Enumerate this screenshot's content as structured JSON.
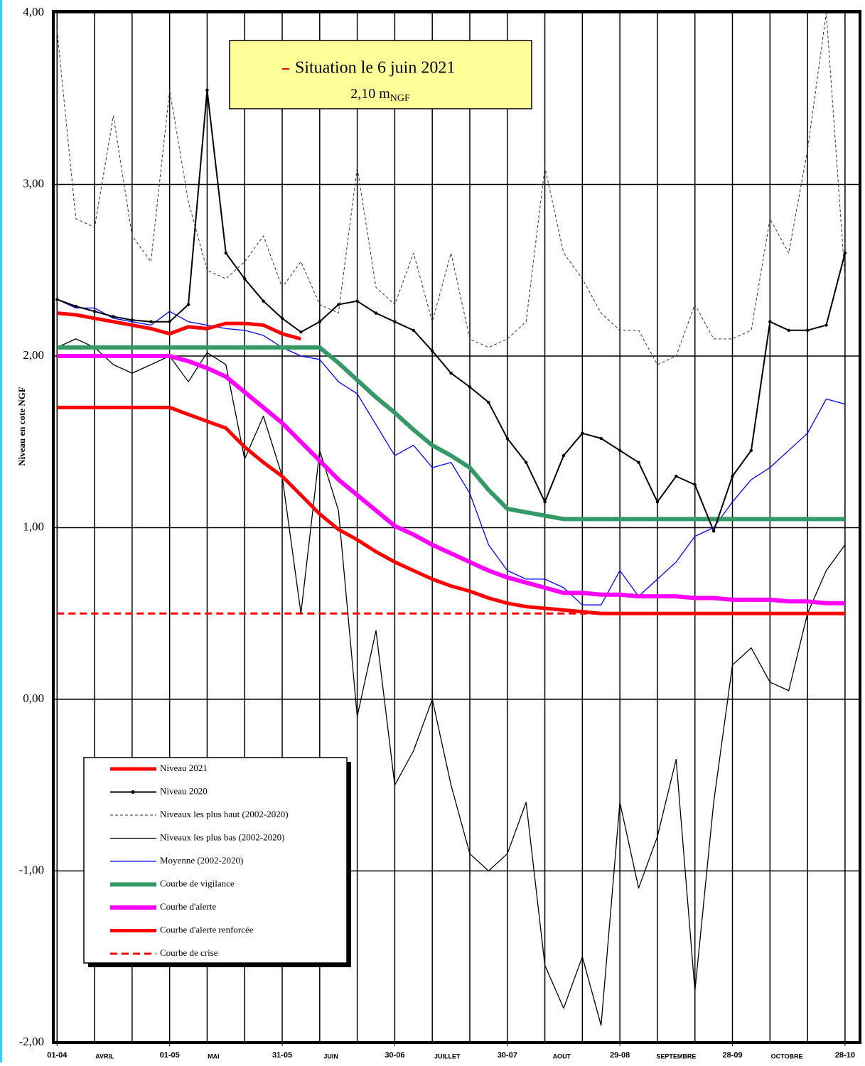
{
  "chart_data": {
    "type": "line",
    "y_label": "Niveau en cote NGF",
    "annotation": {
      "marker_color": "#ff0000",
      "text": "Situation le 6 juin 2021",
      "value": "2,10 m",
      "subscript": "NGF"
    },
    "xlim": [
      -1,
      214
    ],
    "ylim": [
      -2,
      4
    ],
    "yticks": [
      {
        "value": 4,
        "label": "4,00"
      },
      {
        "value": 3,
        "label": "3,00"
      },
      {
        "value": 2,
        "label": "2,00"
      },
      {
        "value": 1,
        "label": "1,00"
      },
      {
        "value": 0,
        "label": "0,00"
      },
      {
        "value": -1,
        "label": "-1,00"
      },
      {
        "value": -2,
        "label": "-2,00"
      }
    ],
    "xticks": [
      {
        "value": 0,
        "label": "01-04"
      },
      {
        "value": 30,
        "label": "01-05"
      },
      {
        "value": 60,
        "label": "31-05"
      },
      {
        "value": 90,
        "label": "30-06"
      },
      {
        "value": 120,
        "label": "30-07"
      },
      {
        "value": 150,
        "label": "29-08"
      },
      {
        "value": 180,
        "label": "28-09"
      },
      {
        "value": 210,
        "label": "28-10"
      }
    ],
    "month_labels": [
      {
        "value": 12.7,
        "label": "AVRIL"
      },
      {
        "value": 41.7,
        "label": "MAI"
      },
      {
        "value": 73,
        "label": "JUIN"
      },
      {
        "value": 104,
        "label": "JUILLET"
      },
      {
        "value": 134.5,
        "label": "AOUT"
      },
      {
        "value": 165,
        "label": "SEPTEMBRE"
      },
      {
        "value": 194.5,
        "label": "OCTOBRE"
      }
    ],
    "xgrid": [
      0,
      10,
      20,
      30,
      40,
      50,
      60,
      70,
      80,
      90,
      100,
      110,
      120,
      130,
      140,
      150,
      160,
      170,
      180,
      190,
      200,
      210
    ],
    "grid": true,
    "legend": "lower-left",
    "x": [
      0,
      5,
      10,
      15,
      20,
      25,
      30,
      35,
      40,
      45,
      50,
      55,
      60,
      65,
      70,
      75,
      80,
      85,
      90,
      95,
      100,
      105,
      110,
      115,
      120,
      125,
      130,
      135,
      140,
      145,
      150,
      155,
      160,
      165,
      170,
      175,
      180,
      185,
      190,
      195,
      200,
      205,
      210
    ],
    "series": [
      {
        "name": "Courbe de crise",
        "color": "#ff0000",
        "width": 3,
        "dash": "dashed",
        "values": [
          0.5,
          0.5,
          0.5,
          0.5,
          0.5,
          0.5,
          0.5,
          0.5,
          0.5,
          0.5,
          0.5,
          0.5,
          0.5,
          0.5,
          0.5,
          0.5,
          0.5,
          0.5,
          0.5,
          0.5,
          0.5,
          0.5,
          0.5,
          0.5,
          0.5,
          0.5,
          0.5,
          0.5,
          0.5,
          0.5,
          0.5,
          0.5,
          0.5,
          0.5,
          0.5,
          0.5,
          0.5,
          0.5,
          0.5,
          0.5,
          0.5,
          0.5,
          0.5
        ]
      },
      {
        "name": "Niveaux les plus haut (2002-2020)",
        "color": "#333333",
        "width": 1,
        "dash": "dotted",
        "values": [
          3.9,
          2.8,
          2.75,
          3.4,
          2.7,
          2.55,
          3.55,
          2.9,
          2.5,
          2.45,
          2.55,
          2.7,
          2.4,
          2.55,
          2.3,
          2.25,
          3.1,
          2.4,
          2.3,
          2.6,
          2.2,
          2.6,
          2.1,
          2.05,
          2.1,
          2.2,
          3.1,
          2.6,
          2.45,
          2.25,
          2.15,
          2.15,
          1.95,
          2.0,
          2.3,
          2.1,
          2.1,
          2.15,
          2.8,
          2.6,
          3.2,
          4.0,
          2.45
        ]
      },
      {
        "name": "Niveaux les plus bas (2002-2020)",
        "color": "#000000",
        "width": 1.3,
        "values": [
          2.05,
          2.1,
          2.05,
          1.95,
          1.9,
          1.95,
          2.0,
          1.85,
          2.02,
          1.95,
          1.4,
          1.65,
          1.3,
          0.5,
          1.45,
          1.1,
          -0.1,
          0.4,
          -0.5,
          -0.3,
          0.0,
          -0.5,
          -0.9,
          -1.0,
          -0.9,
          -0.6,
          -1.55,
          -1.8,
          -1.5,
          -1.9,
          -0.6,
          -1.1,
          -0.8,
          -0.35,
          -1.7,
          -0.6,
          0.2,
          0.3,
          0.1,
          0.05,
          0.5,
          0.75,
          0.9
        ]
      },
      {
        "name": "Moyenne (2002-2020)",
        "color": "#0000ff",
        "width": 1.3,
        "values": [
          2.33,
          2.28,
          2.28,
          2.22,
          2.2,
          2.18,
          2.26,
          2.2,
          2.18,
          2.16,
          2.15,
          2.12,
          2.05,
          2.0,
          1.98,
          1.85,
          1.78,
          1.6,
          1.42,
          1.48,
          1.35,
          1.38,
          1.2,
          0.9,
          0.75,
          0.7,
          0.7,
          0.65,
          0.55,
          0.55,
          0.75,
          0.6,
          0.7,
          0.8,
          0.95,
          1.0,
          1.15,
          1.28,
          1.35,
          1.45,
          1.55,
          1.75,
          1.72
        ]
      },
      {
        "name": "Courbe de vigilance",
        "color": "#339966",
        "width": 6,
        "values": [
          2.05,
          2.05,
          2.05,
          2.05,
          2.05,
          2.05,
          2.05,
          2.05,
          2.05,
          2.05,
          2.05,
          2.05,
          2.05,
          2.05,
          2.05,
          1.96,
          1.86,
          1.76,
          1.67,
          1.57,
          1.48,
          1.42,
          1.35,
          1.22,
          1.11,
          1.09,
          1.07,
          1.05,
          1.05,
          1.05,
          1.05,
          1.05,
          1.05,
          1.05,
          1.05,
          1.05,
          1.05,
          1.05,
          1.05,
          1.05,
          1.05,
          1.05,
          1.05
        ]
      },
      {
        "name": "Courbe d'alerte",
        "color": "#ff00ff",
        "width": 6,
        "values": [
          2.0,
          2.0,
          2.0,
          2.0,
          2.0,
          2.0,
          2.0,
          1.97,
          1.93,
          1.88,
          1.79,
          1.7,
          1.61,
          1.5,
          1.39,
          1.28,
          1.19,
          1.1,
          1.01,
          0.96,
          0.9,
          0.85,
          0.8,
          0.75,
          0.71,
          0.68,
          0.65,
          0.62,
          0.62,
          0.61,
          0.61,
          0.6,
          0.6,
          0.6,
          0.59,
          0.59,
          0.58,
          0.58,
          0.58,
          0.57,
          0.57,
          0.56,
          0.56
        ]
      },
      {
        "name": "Courbe d'alerte renforcée",
        "color": "#ff0000",
        "width": 5,
        "values": [
          1.7,
          1.7,
          1.7,
          1.7,
          1.7,
          1.7,
          1.7,
          1.66,
          1.62,
          1.58,
          1.47,
          1.38,
          1.3,
          1.19,
          1.08,
          0.99,
          0.93,
          0.86,
          0.8,
          0.75,
          0.7,
          0.66,
          0.63,
          0.59,
          0.56,
          0.54,
          0.53,
          0.52,
          0.51,
          0.5,
          0.5,
          0.5,
          0.5,
          0.5,
          0.5,
          0.5,
          0.5,
          0.5,
          0.5,
          0.5,
          0.5,
          0.5,
          0.5
        ]
      },
      {
        "name": "Niveau 2020",
        "color": "#000000",
        "width": 2,
        "markers": true,
        "values": [
          2.33,
          2.29,
          2.26,
          2.23,
          2.21,
          2.2,
          2.2,
          2.3,
          3.55,
          2.6,
          2.45,
          2.32,
          2.22,
          2.14,
          2.2,
          2.3,
          2.32,
          2.25,
          2.2,
          2.15,
          2.03,
          1.9,
          1.82,
          1.73,
          1.52,
          1.38,
          1.15,
          1.42,
          1.55,
          1.52,
          1.45,
          1.38,
          1.15,
          1.3,
          1.25,
          0.98,
          1.3,
          1.45,
          2.2,
          2.15,
          2.15,
          2.18,
          2.6
        ]
      },
      {
        "name": "Niveau 2021",
        "color": "#ff0000",
        "width": 5,
        "values": [
          2.25,
          2.24,
          2.22,
          2.2,
          2.18,
          2.16,
          2.13,
          2.17,
          2.16,
          2.19,
          2.19,
          2.18,
          2.13,
          2.1,
          null,
          null,
          null,
          null,
          null,
          null,
          null,
          null,
          null,
          null,
          null,
          null,
          null,
          null,
          null,
          null,
          null,
          null,
          null,
          null,
          null,
          null,
          null,
          null,
          null,
          null,
          null,
          null,
          null
        ]
      }
    ],
    "legend_order": [
      8,
      7,
      1,
      2,
      3,
      4,
      5,
      6,
      0
    ]
  }
}
